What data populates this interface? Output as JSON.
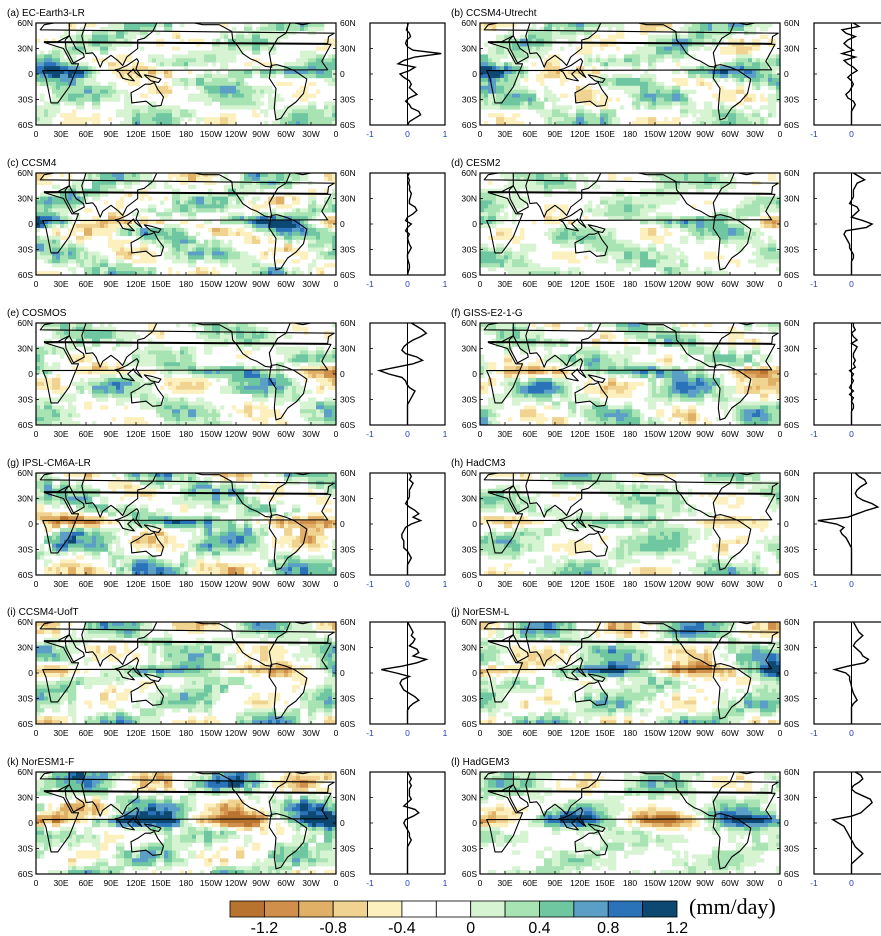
{
  "figure": {
    "panels": [
      {
        "label": "(a) EC-Earth3-LR",
        "profile": [
          0.02,
          0.0,
          -0.03,
          0.05,
          0.08,
          -0.02,
          -0.05,
          0.0,
          0.15,
          0.9,
          0.2,
          -0.1,
          -0.25,
          0.2,
          0.05,
          -0.2,
          -0.1,
          0.05,
          0.1,
          0.05,
          0.15,
          0.25,
          0.05,
          -0.05,
          0.05,
          0.1,
          0.3,
          0.35,
          0.2,
          0.05,
          0.0
        ]
      },
      {
        "label": "(b) CCSM4-Utrecht",
        "profile": [
          0.05,
          0.2,
          -0.25,
          -0.15,
          0.1,
          -0.1,
          -0.2,
          -0.1,
          0.05,
          -0.25,
          0.1,
          -0.2,
          -0.1,
          0.05,
          0.15,
          0.0,
          -0.1,
          0.0,
          0.05,
          0.0,
          -0.05,
          -0.15,
          -0.1,
          0.05,
          0.1,
          0.05,
          0.0,
          0.0,
          0.0,
          0.0,
          0.0
        ]
      },
      {
        "label": "(c) CCSM4",
        "profile": [
          0.05,
          0.0,
          0.05,
          0.03,
          0.06,
          0.05,
          0.1,
          0.08,
          0.05,
          0.05,
          0.2,
          0.25,
          0.15,
          0.0,
          -0.05,
          0.1,
          0.0,
          -0.05,
          0.05,
          0.0,
          0.02,
          0.05,
          0.1,
          0.05,
          0.0,
          0.0,
          0.02,
          0.05,
          0.05,
          0.02,
          0.0
        ]
      },
      {
        "label": "(d) CESM2",
        "profile": [
          0.05,
          0.2,
          0.35,
          0.15,
          0.1,
          0.05,
          0.05,
          0.05,
          0.0,
          -0.05,
          0.15,
          0.2,
          0.1,
          0.0,
          0.3,
          0.55,
          0.4,
          -0.15,
          -0.2,
          -0.15,
          -0.1,
          -0.05,
          -0.05,
          0.0,
          0.05,
          0.05,
          0.0,
          0.0,
          0.0,
          0.0,
          0.0
        ]
      },
      {
        "label": "(e) COSMOS",
        "profile": [
          0.1,
          0.25,
          0.4,
          0.5,
          0.35,
          0.15,
          0.0,
          -0.1,
          -0.15,
          -0.05,
          0.25,
          0.4,
          0.15,
          -0.3,
          -0.75,
          -0.5,
          -0.15,
          -0.05,
          -0.02,
          0.05,
          0.2,
          0.15,
          0.1,
          0.05,
          0.0,
          0.0,
          0.0,
          0.0,
          0.0,
          0.0,
          0.0
        ]
      },
      {
        "label": "(f) GISS-E2-1-G",
        "profile": [
          0.05,
          0.05,
          0.1,
          0.0,
          0.05,
          0.15,
          0.0,
          0.15,
          0.1,
          0.05,
          0.05,
          0.1,
          0.05,
          0.1,
          -0.05,
          0.05,
          0.0,
          0.05,
          0.0,
          -0.05,
          0.05,
          -0.05,
          0.05,
          0.0,
          0.05,
          0.05,
          0.0,
          0.0,
          0.0,
          0.0,
          0.0
        ]
      },
      {
        "label": "(g) IPSL-CM6A-LR",
        "profile": [
          0.05,
          0.1,
          0.05,
          0.15,
          0.1,
          0.05,
          0.05,
          0.05,
          0.0,
          -0.05,
          0.05,
          0.2,
          0.3,
          0.15,
          0.35,
          0.1,
          -0.05,
          -0.1,
          -0.15,
          -0.15,
          -0.1,
          -0.1,
          -0.1,
          0.0,
          0.05,
          0.1,
          0.05,
          0.0,
          0.0,
          0.0,
          0.0
        ]
      },
      {
        "label": "(h) HadCM3",
        "profile": [
          0.1,
          0.2,
          0.35,
          0.4,
          0.25,
          0.15,
          0.1,
          0.15,
          0.3,
          0.55,
          0.7,
          0.4,
          0.15,
          -0.1,
          -0.9,
          -0.4,
          -0.2,
          -0.3,
          -0.25,
          -0.15,
          -0.1,
          -0.05,
          0.0,
          0.0,
          0.0,
          0.0,
          0.0,
          0.0,
          0.0,
          0.0,
          0.0
        ]
      },
      {
        "label": "(i) CCSM4-UofT",
        "profile": [
          0.0,
          0.05,
          0.1,
          0.15,
          0.1,
          0.2,
          0.15,
          0.05,
          0.25,
          0.3,
          0.15,
          0.5,
          0.25,
          -0.15,
          -0.7,
          -0.3,
          0.05,
          -0.15,
          -0.2,
          -0.15,
          -0.1,
          0.05,
          0.2,
          0.3,
          0.15,
          0.05,
          0.0,
          0.0,
          0.0,
          0.0,
          0.0
        ]
      },
      {
        "label": "(j) NorESM-L",
        "profile": [
          0.05,
          0.1,
          0.15,
          0.2,
          0.3,
          0.2,
          0.1,
          0.05,
          0.15,
          0.25,
          0.3,
          0.45,
          0.35,
          -0.1,
          -0.45,
          -0.15,
          -0.05,
          -0.05,
          -0.02,
          0.0,
          0.02,
          0.05,
          0.1,
          0.15,
          0.05,
          0.0,
          0.0,
          0.0,
          0.0,
          0.0,
          0.0
        ]
      },
      {
        "label": "(k) NorESM1-F",
        "profile": [
          0.0,
          0.05,
          0.1,
          0.05,
          0.1,
          0.05,
          0.05,
          0.05,
          0.1,
          0.0,
          -0.1,
          0.2,
          0.3,
          0.15,
          -0.05,
          -0.1,
          -0.05,
          0.0,
          0.05,
          0.05,
          0.1,
          0.05,
          0.0,
          0.0,
          0.0,
          0.0,
          0.0,
          0.0,
          0.0,
          0.0,
          0.0
        ]
      },
      {
        "label": "(l) HadGEM3",
        "profile": [
          0.1,
          0.25,
          0.3,
          0.2,
          0.05,
          0.0,
          0.1,
          0.3,
          0.5,
          0.55,
          0.45,
          0.35,
          0.25,
          0.0,
          -0.5,
          -0.35,
          -0.2,
          -0.15,
          -0.1,
          -0.05,
          0.0,
          0.05,
          0.1,
          0.2,
          0.3,
          0.2,
          0.1,
          0.0,
          0.0,
          0.0,
          0.0
        ]
      }
    ]
  },
  "chart_data": {
    "type": "heatmap",
    "description_source": "12 model panels of precipitation anomaly maps with zonal-mean profiles",
    "map_axes": {
      "x_tick_labels": [
        "0",
        "30E",
        "60E",
        "90E",
        "120E",
        "150E",
        "180",
        "150W",
        "120W",
        "90W",
        "60W",
        "30W",
        "0"
      ],
      "y_tick_labels": [
        "60N",
        "30N",
        "0",
        "30S",
        "60S"
      ],
      "ylim": [
        -60,
        60
      ]
    },
    "profile_axes": {
      "x_tick_labels": [
        "-1",
        "0",
        "1"
      ],
      "xlim": [
        -1,
        1
      ],
      "y_tick_labels": [
        "60N",
        "30N",
        "0",
        "30S",
        "60S"
      ],
      "profile_latitudes_step": 4
    },
    "colorbar": {
      "colors": [
        "#b8732f",
        "#d08f4a",
        "#e0b067",
        "#f0d391",
        "#fcf0bf",
        "#ffffff",
        "#ffffff",
        "#d6f4d2",
        "#a8e3b4",
        "#6fc7a1",
        "#5b9fc7",
        "#2a73b8",
        "#0d4872"
      ],
      "tick_labels": [
        "-1.2",
        "-0.8",
        "-0.4",
        "0",
        "0.4",
        "0.8",
        "1.2"
      ],
      "unit": "(mm/day)"
    },
    "colors": {
      "profile_tick_label": "#1f3fb5",
      "coast": "#000000"
    }
  }
}
